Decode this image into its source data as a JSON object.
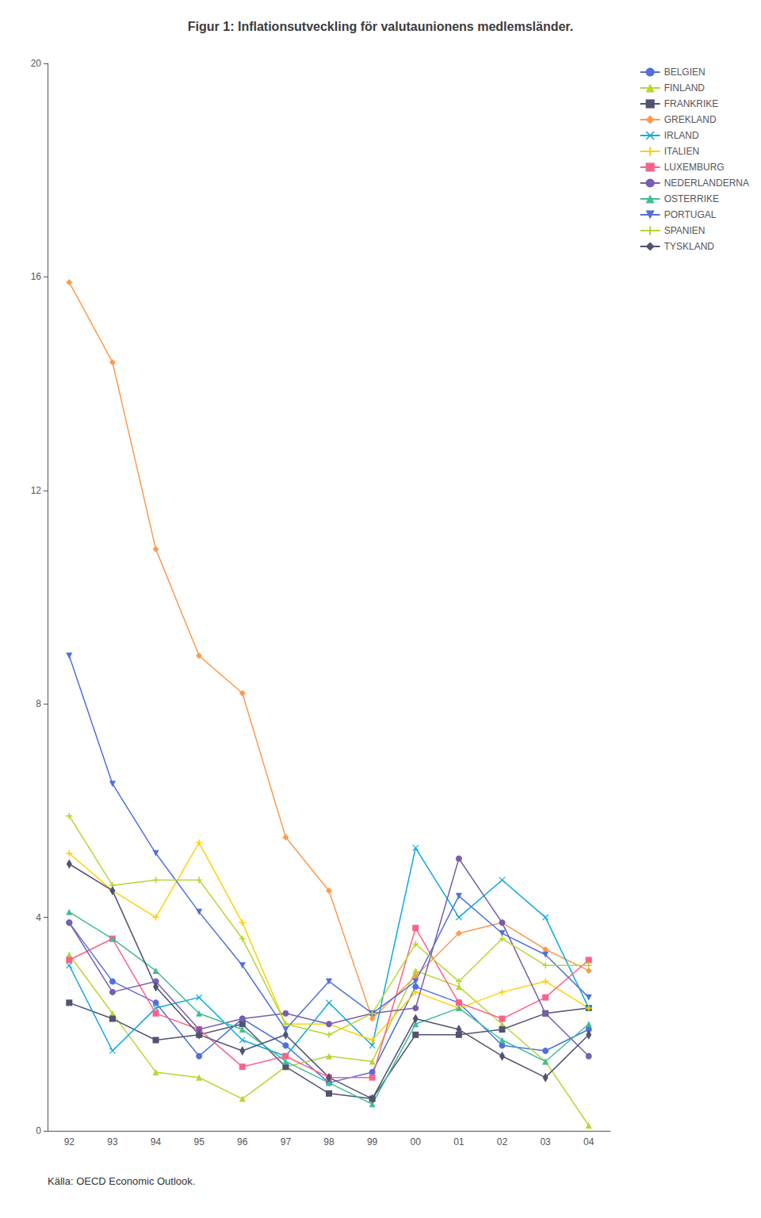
{
  "chart_data": {
    "type": "line",
    "title": "Figur 1: Inflationsutveckling för valutaunionens medlemsländer.",
    "annotations": [
      "Källa: OECD Economic Outlook."
    ],
    "categories": [
      "92",
      "93",
      "94",
      "95",
      "96",
      "97",
      "98",
      "99",
      "00",
      "01",
      "02",
      "03",
      "04"
    ],
    "ylim": [
      0,
      20
    ],
    "yticks": [
      0,
      4,
      8,
      12,
      16,
      20
    ],
    "grid": false,
    "legend": "right",
    "series": [
      {
        "name": "BELGIEN",
        "marker": "circle",
        "line_style": "solid",
        "values": [
          3.9,
          2.8,
          2.4,
          1.4,
          2.1,
          1.6,
          0.9,
          1.1,
          2.7,
          2.4,
          1.6,
          1.5,
          1.9
        ]
      },
      {
        "name": "FINLAND",
        "marker": "triangle",
        "line_style": "solid",
        "values": [
          3.3,
          2.2,
          1.1,
          1.0,
          0.6,
          1.2,
          1.4,
          1.3,
          3.0,
          2.7,
          2.0,
          1.3,
          0.1
        ]
      },
      {
        "name": "FRANKRIKE",
        "marker": "square",
        "line_style": "solid",
        "values": [
          2.4,
          2.1,
          1.7,
          1.8,
          2.0,
          1.2,
          0.7,
          0.6,
          1.8,
          1.8,
          1.9,
          2.2,
          2.3
        ]
      },
      {
        "name": "GREKLAND",
        "marker": "diamond",
        "line_style": "solid",
        "values": [
          15.9,
          14.4,
          10.9,
          8.9,
          8.2,
          5.5,
          4.5,
          2.1,
          2.9,
          3.7,
          3.9,
          3.4,
          3.0
        ]
      },
      {
        "name": "IRLAND",
        "marker": "x",
        "line_style": "solid",
        "values": [
          3.1,
          1.5,
          2.3,
          2.5,
          1.7,
          1.4,
          2.4,
          1.6,
          5.3,
          4.0,
          4.7,
          4.0,
          2.3
        ]
      },
      {
        "name": "ITALIEN",
        "marker": "plus",
        "line_style": "solid",
        "values": [
          5.2,
          4.5,
          4.0,
          5.4,
          3.9,
          2.0,
          2.0,
          1.7,
          2.6,
          2.3,
          2.6,
          2.8,
          2.3
        ]
      },
      {
        "name": "LUXEMBURG",
        "marker": "square",
        "line_style": "solid",
        "values": [
          3.2,
          3.6,
          2.2,
          1.9,
          1.2,
          1.4,
          1.0,
          1.0,
          3.8,
          2.4,
          2.1,
          2.5,
          3.2
        ]
      },
      {
        "name": "NEDERLANDERNA",
        "marker": "circle",
        "line_style": "solid",
        "values": [
          3.9,
          2.6,
          2.8,
          1.9,
          2.1,
          2.2,
          2.0,
          2.2,
          2.3,
          5.1,
          3.9,
          2.2,
          1.4
        ]
      },
      {
        "name": "OSTERRIKE",
        "marker": "triangle",
        "line_style": "solid",
        "values": [
          4.1,
          3.6,
          3.0,
          2.2,
          1.9,
          1.3,
          0.9,
          0.5,
          2.0,
          2.3,
          1.7,
          1.3,
          2.0
        ]
      },
      {
        "name": "PORTUGAL",
        "marker": "triangle-down",
        "line_style": "solid",
        "values": [
          8.9,
          6.5,
          5.2,
          4.1,
          3.1,
          1.9,
          2.8,
          2.2,
          2.8,
          4.4,
          3.7,
          3.3,
          2.5
        ]
      },
      {
        "name": "SPANIEN",
        "marker": "plus",
        "line_style": "solid",
        "values": [
          5.9,
          4.6,
          4.7,
          4.7,
          3.6,
          2.0,
          1.8,
          2.2,
          3.5,
          2.8,
          3.6,
          3.1,
          3.1
        ]
      },
      {
        "name": "TYSKLAND",
        "marker": "thin-diamond",
        "line_style": "solid",
        "values": [
          5.0,
          4.5,
          2.7,
          1.8,
          1.5,
          1.8,
          1.0,
          0.6,
          2.1,
          1.9,
          1.4,
          1.0,
          1.8
        ]
      }
    ]
  }
}
